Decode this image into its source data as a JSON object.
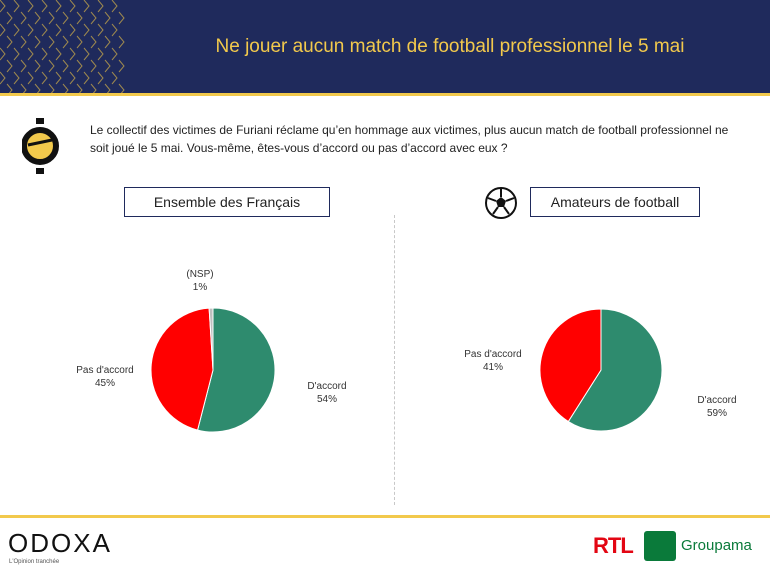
{
  "header": {
    "title": "Ne jouer aucun match de football professionnel le 5 mai"
  },
  "question": "Le collectif des victimes de Furiani réclame qu’en hommage aux victimes, plus aucun match de football professionnel ne soit joué le 5 mai. Vous-même, êtes-vous d’accord ou pas d’accord avec eux ?",
  "colors": {
    "navy": "#1f2a5c",
    "gold": "#f2c94c",
    "green": "#2e8b6e",
    "red": "#ff0000",
    "grey": "#bfbfbf"
  },
  "chart_data": [
    {
      "type": "pie",
      "title": "Ensemble des Français",
      "slices": [
        {
          "label": "D'accord",
          "value": 54,
          "display": "54%",
          "color": "#2e8b6e"
        },
        {
          "label": "Pas d'accord",
          "value": 45,
          "display": "45%",
          "color": "#ff0000"
        },
        {
          "label": "(NSP)",
          "value": 1,
          "display": "1%",
          "color": "#bfbfbf"
        }
      ]
    },
    {
      "type": "pie",
      "title": "Amateurs de football",
      "slices": [
        {
          "label": "D'accord",
          "value": 59,
          "display": "59%",
          "color": "#2e8b6e"
        },
        {
          "label": "Pas d'accord",
          "value": 41,
          "display": "41%",
          "color": "#ff0000"
        }
      ]
    }
  ],
  "footer": {
    "brand": "ODOXA",
    "tagline": "L'Opinion tranchée",
    "partner1": "RTL",
    "partner2": "Groupama"
  }
}
